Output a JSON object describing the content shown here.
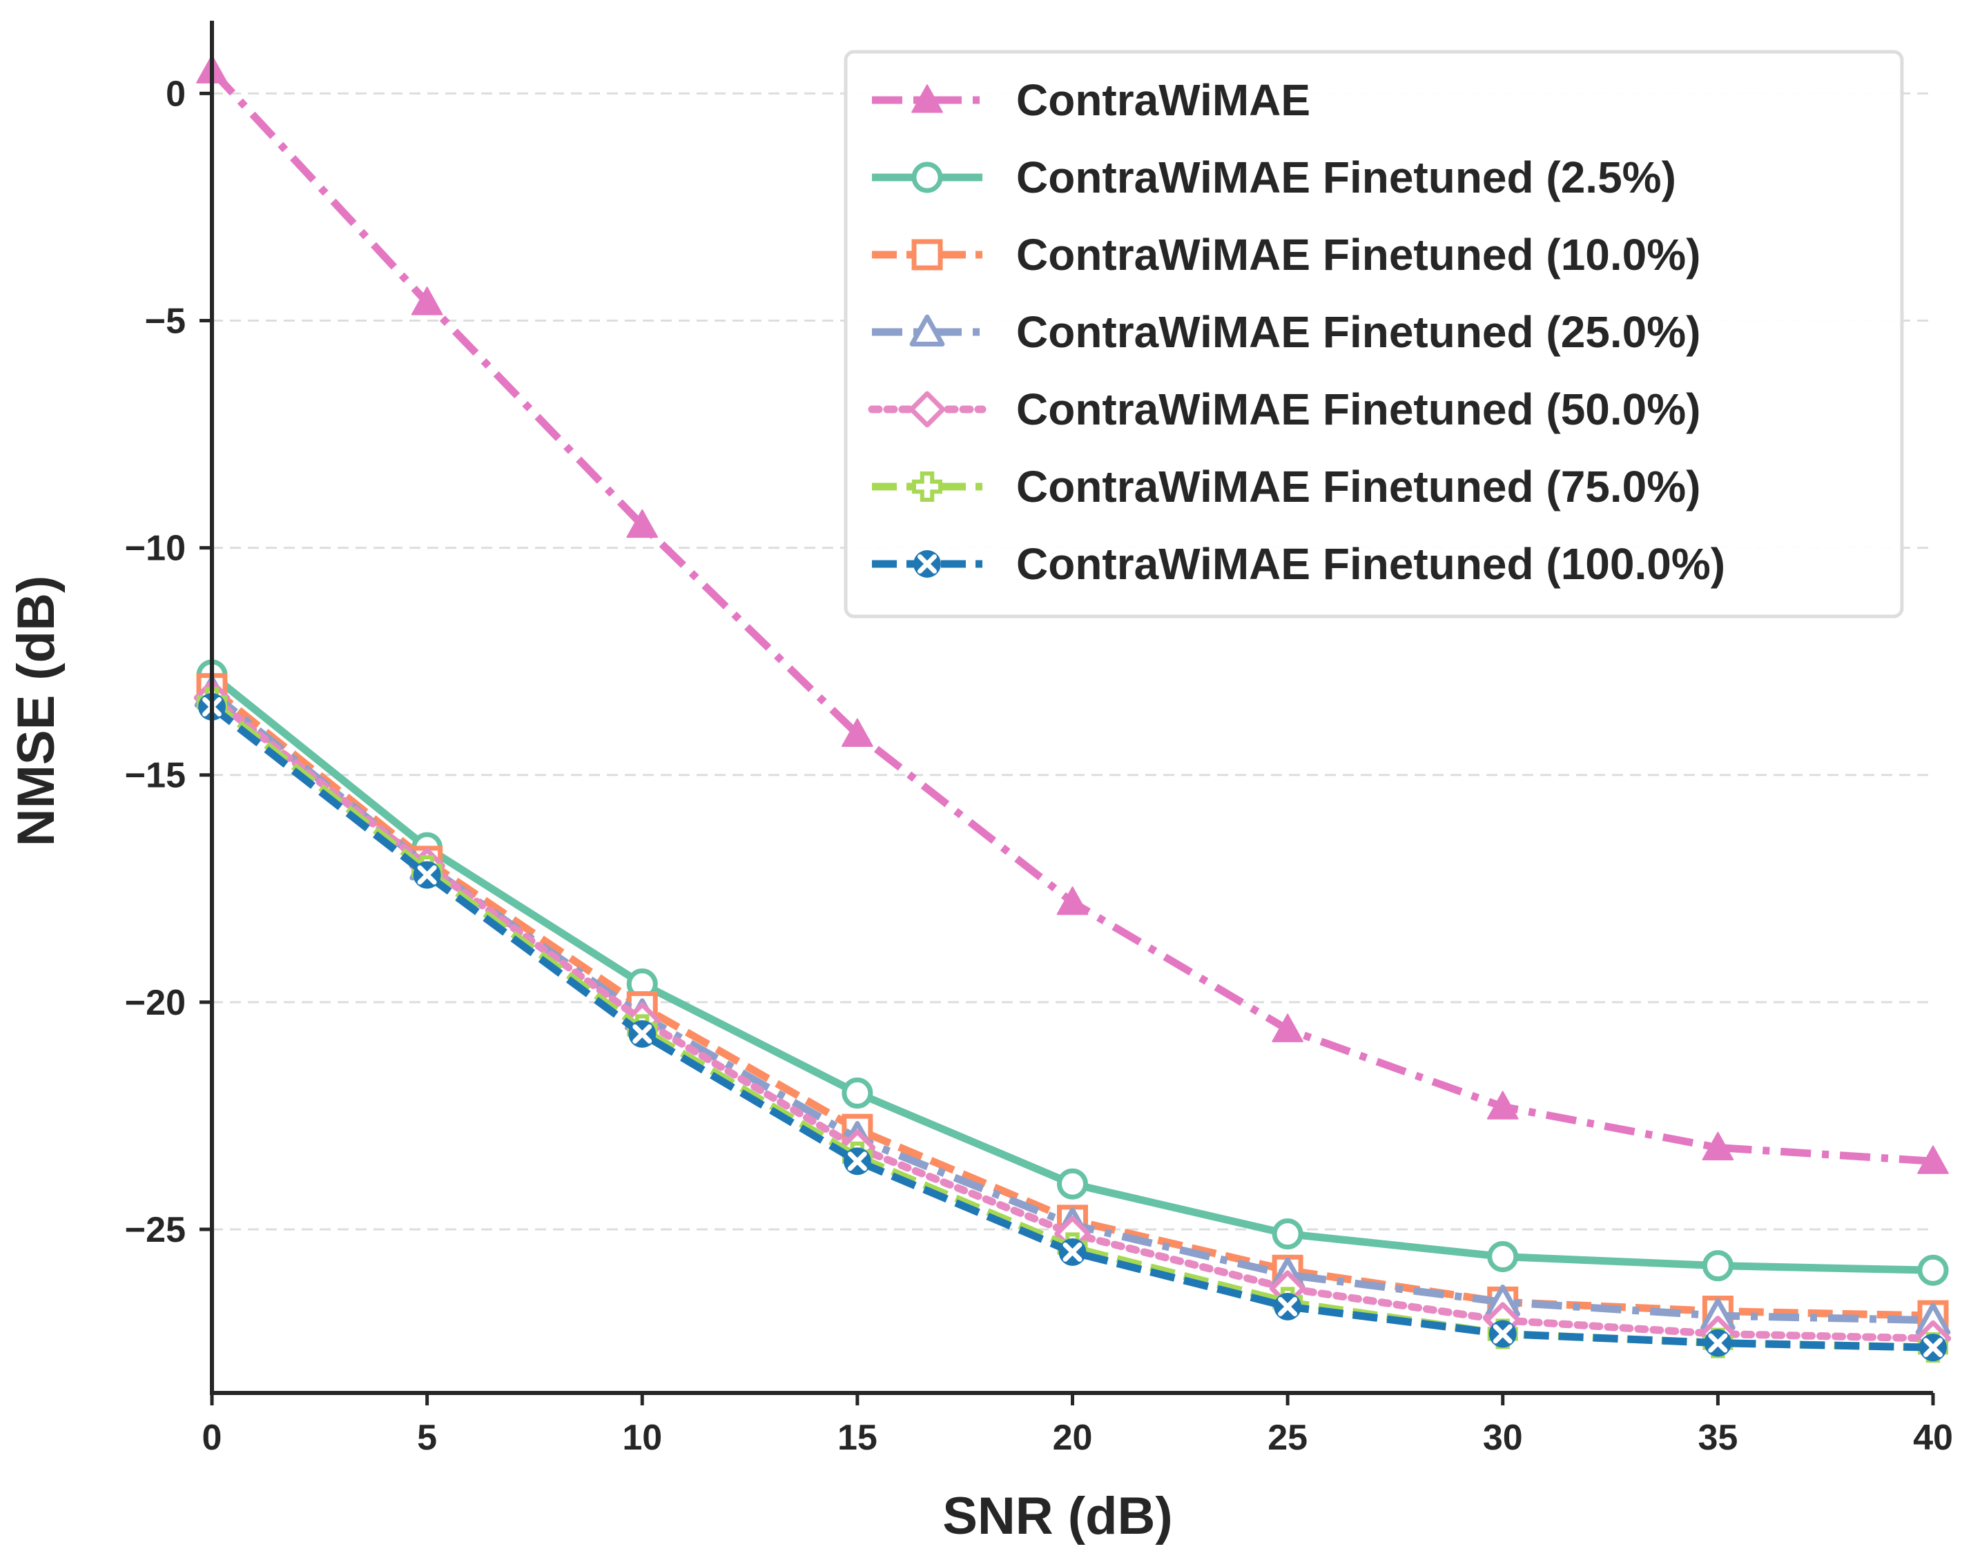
{
  "chart_data": {
    "type": "line",
    "title": "",
    "xlabel": "SNR (dB)",
    "ylabel": "NMSE (dB)",
    "xlim": [
      0,
      40
    ],
    "ylim": [
      -28.6,
      1.6
    ],
    "x": [
      0,
      5,
      10,
      15,
      20,
      25,
      30,
      35,
      40
    ],
    "xticks": [
      0,
      5,
      10,
      15,
      20,
      25,
      30,
      35,
      40
    ],
    "yticks": [
      0,
      -5,
      -10,
      -15,
      -20,
      -25
    ],
    "xtick_labels": [
      "0",
      "5",
      "10",
      "15",
      "20",
      "25",
      "30",
      "35",
      "40"
    ],
    "ytick_labels": [
      "0",
      "−5",
      "−10",
      "−15",
      "−20",
      "−25"
    ],
    "grid": "horizontal dashed",
    "legend_position": "top-right",
    "series": [
      {
        "name": "ContraWiMAE",
        "color": "#e377c2",
        "marker": "triangle-filled",
        "dash": "dashdot",
        "values": [
          0.5,
          -4.6,
          -9.5,
          -14.1,
          -17.8,
          -20.6,
          -22.3,
          -23.2,
          -23.5
        ]
      },
      {
        "name": "ContraWiMAE Finetuned (2.5%)",
        "color": "#66c2a5",
        "marker": "circle-open",
        "dash": "solid",
        "values": [
          -12.8,
          -16.6,
          -19.6,
          -22.0,
          -24.0,
          -25.1,
          -25.6,
          -25.8,
          -25.9
        ]
      },
      {
        "name": "ContraWiMAE Finetuned (10.0%)",
        "color": "#fc8d62",
        "marker": "square-open",
        "dash": "dashed",
        "values": [
          -13.1,
          -16.9,
          -20.1,
          -22.8,
          -24.8,
          -25.9,
          -26.6,
          -26.8,
          -26.9
        ]
      },
      {
        "name": "ContraWiMAE Finetuned (25.0%)",
        "color": "#8da0cb",
        "marker": "triangle-open",
        "dash": "dashdot",
        "values": [
          -13.2,
          -17.0,
          -20.3,
          -23.0,
          -24.9,
          -26.0,
          -26.6,
          -26.9,
          -27.0
        ]
      },
      {
        "name": "ContraWiMAE Finetuned (50.0%)",
        "color": "#e78ac3",
        "marker": "diamond-open",
        "dash": "dotted",
        "values": [
          -13.3,
          -17.0,
          -20.4,
          -23.2,
          -25.1,
          -26.3,
          -27.0,
          -27.3,
          -27.4
        ]
      },
      {
        "name": "ContraWiMAE Finetuned (75.0%)",
        "color": "#a6d854",
        "marker": "plus-open",
        "dash": "dashed",
        "values": [
          -13.4,
          -17.1,
          -20.6,
          -23.4,
          -25.4,
          -26.6,
          -27.3,
          -27.5,
          -27.6
        ]
      },
      {
        "name": "ContraWiMAE Finetuned (100.0%)",
        "color": "#1f78b4",
        "marker": "x-filled",
        "dash": "dashed",
        "values": [
          -13.5,
          -17.2,
          -20.7,
          -23.5,
          -25.5,
          -26.7,
          -27.3,
          -27.5,
          -27.6
        ]
      }
    ]
  }
}
